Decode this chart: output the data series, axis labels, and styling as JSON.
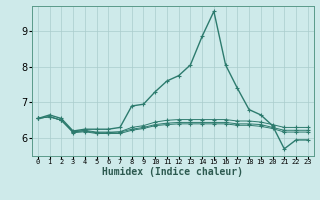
{
  "xlabel": "Humidex (Indice chaleur)",
  "background_color": "#ceeaea",
  "grid_color": "#b8d8d8",
  "line_color": "#2d7b6e",
  "xlim": [
    -0.5,
    23.5
  ],
  "ylim": [
    5.5,
    9.7
  ],
  "yticks": [
    6,
    7,
    8,
    9
  ],
  "xtick_labels": [
    "0",
    "1",
    "2",
    "3",
    "4",
    "5",
    "6",
    "7",
    "8",
    "9",
    "10",
    "11",
    "12",
    "13",
    "14",
    "15",
    "16",
    "17",
    "18",
    "19",
    "20",
    "21",
    "22",
    "23"
  ],
  "series": [
    [
      6.55,
      6.65,
      6.55,
      6.2,
      6.25,
      6.25,
      6.25,
      6.3,
      6.9,
      6.95,
      7.3,
      7.6,
      7.75,
      8.05,
      8.85,
      9.55,
      8.05,
      7.4,
      6.8,
      6.65,
      6.35,
      5.7,
      5.95,
      5.95
    ],
    [
      6.55,
      6.6,
      6.5,
      6.18,
      6.2,
      6.15,
      6.15,
      6.18,
      6.3,
      6.35,
      6.45,
      6.5,
      6.52,
      6.52,
      6.52,
      6.52,
      6.52,
      6.48,
      6.48,
      6.45,
      6.38,
      6.3,
      6.3,
      6.3
    ],
    [
      6.55,
      6.6,
      6.5,
      6.18,
      6.22,
      6.17,
      6.17,
      6.17,
      6.25,
      6.3,
      6.38,
      6.42,
      6.44,
      6.44,
      6.44,
      6.44,
      6.44,
      6.4,
      6.4,
      6.38,
      6.3,
      6.22,
      6.22,
      6.22
    ],
    [
      6.55,
      6.6,
      6.5,
      6.15,
      6.18,
      6.13,
      6.13,
      6.13,
      6.22,
      6.27,
      6.35,
      6.38,
      6.4,
      6.4,
      6.4,
      6.4,
      6.4,
      6.36,
      6.36,
      6.33,
      6.27,
      6.17,
      6.17,
      6.17
    ]
  ],
  "markers": [
    "+",
    "+",
    "+",
    "+"
  ],
  "linewidths": [
    1.0,
    0.7,
    0.7,
    0.7
  ],
  "markersizes": [
    3.5,
    3.0,
    3.0,
    3.0
  ]
}
